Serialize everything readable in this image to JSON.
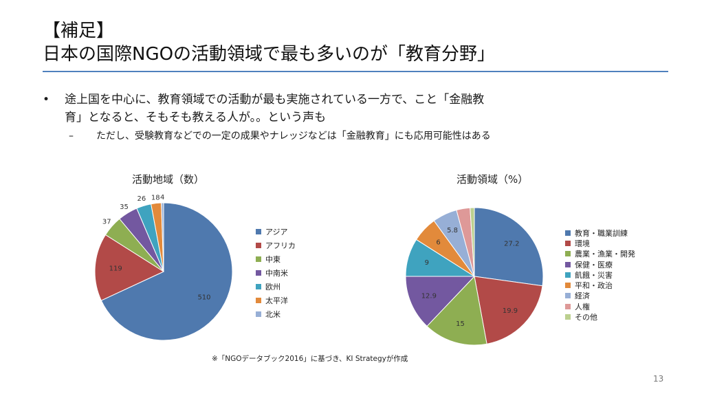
{
  "slide": {
    "title_line1": "【補足】",
    "title_line2": "日本の国際NGOの活動領域で最も多いのが「教育分野」",
    "bullet_marker": "•",
    "sub_marker": "–",
    "bullet1_line1": "途上国を中心に、教育領域での活動が最も実施されている一方で、こと「金融教",
    "bullet1_line2": "育」となると、そもそも教える人が。。という声も",
    "sub_bullet": "ただし、受験教育などでの一定の成果やナレッジなどは「金融教育」にも応用可能性はある",
    "footnote": "※「NGOデータブック2016」に基づき、KI Strategyが作成",
    "page_number": "13"
  },
  "chart_data": [
    {
      "type": "pie",
      "title": "活動地域（数）",
      "categories": [
        "アジア",
        "アフリカ",
        "中東",
        "中南米",
        "欧州",
        "太平洋",
        "北米"
      ],
      "values": [
        510,
        119,
        37,
        35,
        26,
        18,
        4
      ],
      "colors": [
        "#4f79ae",
        "#b24a48",
        "#8eae52",
        "#7358a0",
        "#3fa3bf",
        "#e28a3b",
        "#97afd6"
      ],
      "legend": "right"
    },
    {
      "type": "pie",
      "title": "活動領域（%）",
      "categories": [
        "教育・職業訓練",
        "環境",
        "農業・漁業・開発",
        "保健・医療",
        "飢餓・災害",
        "平和・政治",
        "経済",
        "人権",
        "その他"
      ],
      "values": [
        27.2,
        19.9,
        15,
        12.9,
        9,
        6,
        5.8,
        3.2,
        1
      ],
      "labels": [
        "27.2",
        "19.9",
        "15",
        "12.9",
        "9",
        "6",
        "5.8",
        "",
        ""
      ],
      "colors": [
        "#4f79ae",
        "#b24a48",
        "#8eae52",
        "#7358a0",
        "#3fa3bf",
        "#e28a3b",
        "#97afd6",
        "#de9998",
        "#bcd08f"
      ],
      "legend": "right"
    }
  ]
}
